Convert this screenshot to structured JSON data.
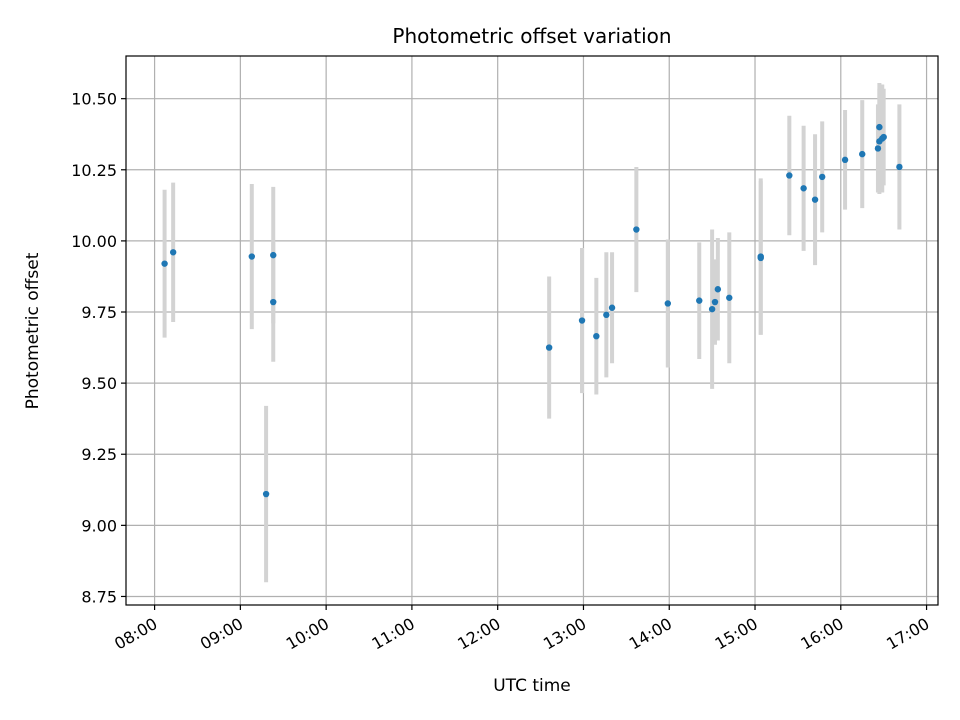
{
  "chart_data": {
    "type": "scatter",
    "title": "Photometric offset variation",
    "xlabel": "UTC time",
    "ylabel": "Photometric offset",
    "xlim": [
      "07:40",
      "17:08"
    ],
    "ylim": [
      8.72,
      10.65
    ],
    "x_ticks": [
      "08:00",
      "09:00",
      "10:00",
      "11:00",
      "12:00",
      "13:00",
      "14:00",
      "15:00",
      "16:00",
      "17:00"
    ],
    "y_ticks": [
      "8.75",
      "9.00",
      "9.25",
      "9.50",
      "9.75",
      "10.00",
      "10.25",
      "10.50"
    ],
    "grid": true,
    "colors": {
      "point": "#1f77b4",
      "errorbar": "#d3d3d3",
      "grid": "#b0b0b0"
    },
    "series": [
      {
        "points": [
          {
            "x": "08:07",
            "y": 9.92,
            "err": 0.26
          },
          {
            "x": "08:13",
            "y": 9.96,
            "err": 0.245
          },
          {
            "x": "09:08",
            "y": 9.945,
            "err": 0.255
          },
          {
            "x": "09:18",
            "y": 9.11,
            "err": 0.31
          },
          {
            "x": "09:23",
            "y": 9.785,
            "err": 0.21
          },
          {
            "x": "09:23",
            "y": 9.95,
            "err": 0.24
          },
          {
            "x": "12:36",
            "y": 9.625,
            "err": 0.25
          },
          {
            "x": "12:59",
            "y": 9.72,
            "err": 0.255
          },
          {
            "x": "13:09",
            "y": 9.665,
            "err": 0.205
          },
          {
            "x": "13:16",
            "y": 9.74,
            "err": 0.22
          },
          {
            "x": "13:20",
            "y": 9.765,
            "err": 0.195
          },
          {
            "x": "13:37",
            "y": 10.04,
            "err": 0.22
          },
          {
            "x": "13:59",
            "y": 9.78,
            "err": 0.225
          },
          {
            "x": "14:21",
            "y": 9.79,
            "err": 0.205
          },
          {
            "x": "14:30",
            "y": 9.76,
            "err": 0.28
          },
          {
            "x": "14:32",
            "y": 9.785,
            "err": 0.15
          },
          {
            "x": "14:34",
            "y": 9.83,
            "err": 0.18
          },
          {
            "x": "14:42",
            "y": 9.8,
            "err": 0.23
          },
          {
            "x": "15:04",
            "y": 9.945,
            "err": 0.275
          },
          {
            "x": "15:04",
            "y": 9.94,
            "err": 0.27
          },
          {
            "x": "15:24",
            "y": 10.23,
            "err": 0.21
          },
          {
            "x": "15:34",
            "y": 10.185,
            "err": 0.22
          },
          {
            "x": "15:42",
            "y": 10.145,
            "err": 0.23
          },
          {
            "x": "15:47",
            "y": 10.225,
            "err": 0.195
          },
          {
            "x": "16:03",
            "y": 10.285,
            "err": 0.175
          },
          {
            "x": "16:15",
            "y": 10.305,
            "err": 0.19
          },
          {
            "x": "16:26",
            "y": 10.325,
            "err": 0.155
          },
          {
            "x": "16:27",
            "y": 10.35,
            "err": 0.185
          },
          {
            "x": "16:27",
            "y": 10.4,
            "err": 0.155
          },
          {
            "x": "16:29",
            "y": 10.36,
            "err": 0.19
          },
          {
            "x": "16:30",
            "y": 10.365,
            "err": 0.17
          },
          {
            "x": "16:41",
            "y": 10.26,
            "err": 0.22
          }
        ]
      }
    ]
  }
}
